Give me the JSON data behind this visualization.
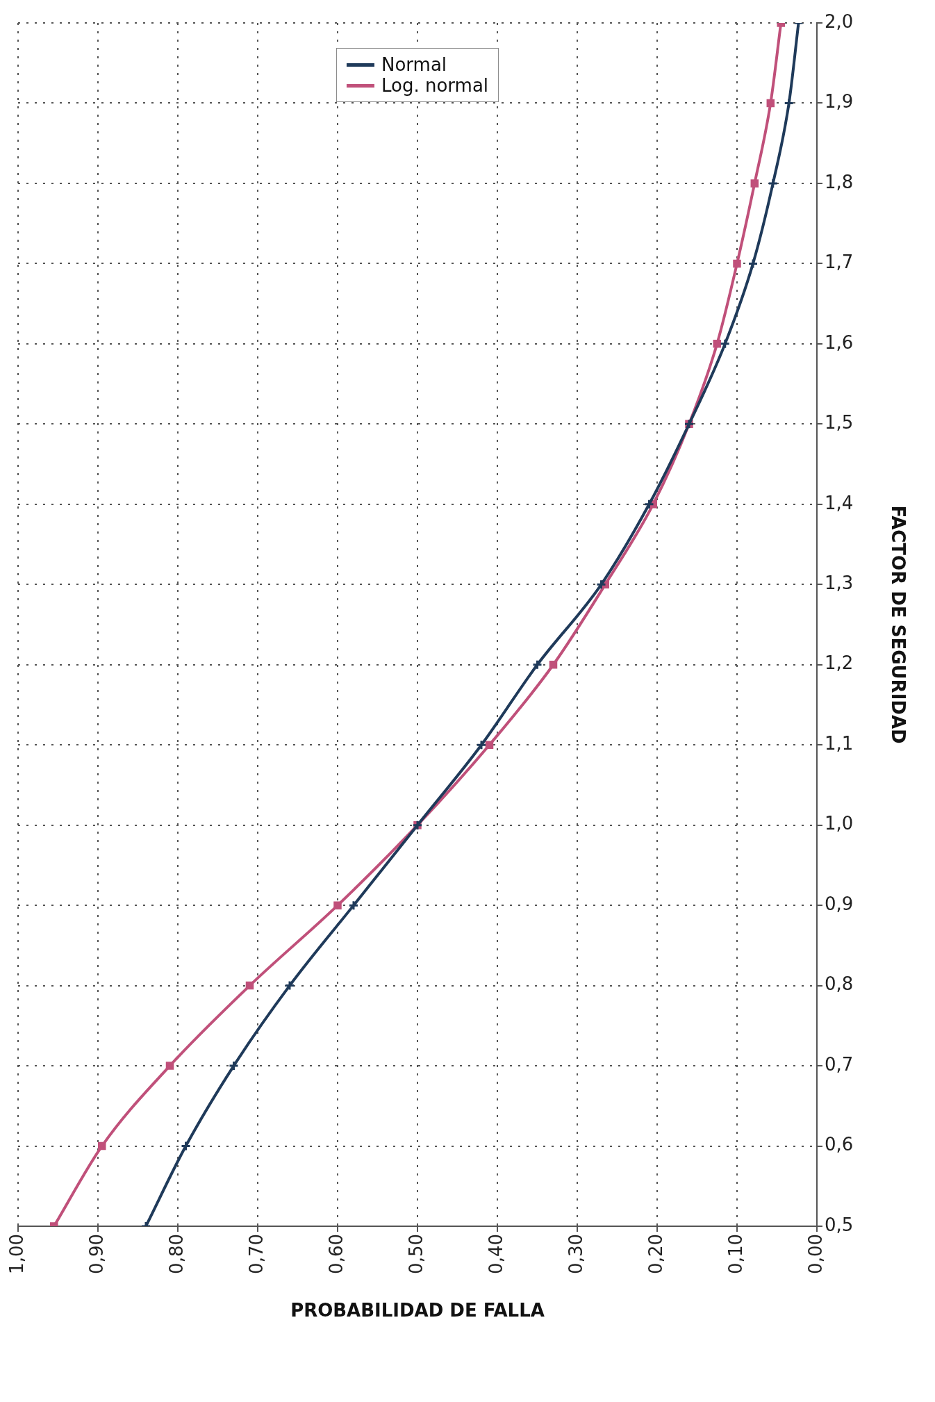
{
  "chart_data": {
    "type": "line",
    "xlabel": "PROBABILIDAD DE FALLA",
    "ylabel": "FACTOR DE SEGURIDAD",
    "series": [
      {
        "name": "Normal",
        "color": "#1f3a5a",
        "marker": "cross",
        "x": [
          0.84,
          0.79,
          0.73,
          0.66,
          0.58,
          0.5,
          0.42,
          0.35,
          0.27,
          0.21,
          0.16,
          0.115,
          0.08,
          0.055,
          0.035,
          0.023
        ],
        "values": [
          0.5,
          0.6,
          0.7,
          0.8,
          0.9,
          1.0,
          1.1,
          1.2,
          1.3,
          1.4,
          1.5,
          1.6,
          1.7,
          1.8,
          1.9,
          2.0
        ]
      },
      {
        "name": "Log. normal",
        "color": "#c0507a",
        "marker": "square",
        "x": [
          0.955,
          0.895,
          0.81,
          0.71,
          0.6,
          0.5,
          0.41,
          0.33,
          0.265,
          0.205,
          0.16,
          0.125,
          0.1,
          0.078,
          0.058,
          0.045
        ],
        "values": [
          0.5,
          0.6,
          0.7,
          0.8,
          0.9,
          1.0,
          1.1,
          1.2,
          1.3,
          1.4,
          1.5,
          1.6,
          1.7,
          1.8,
          1.9,
          2.0
        ]
      }
    ],
    "ylim": [
      0.5,
      2.0
    ],
    "yticks": [
      {
        "value": 0.5,
        "label": "0,5"
      },
      {
        "value": 0.6,
        "label": "0,6"
      },
      {
        "value": 0.7,
        "label": "0,7"
      },
      {
        "value": 0.8,
        "label": "0,8"
      },
      {
        "value": 0.9,
        "label": "0,9"
      },
      {
        "value": 1.0,
        "label": "1,0"
      },
      {
        "value": 1.1,
        "label": "1,1"
      },
      {
        "value": 1.2,
        "label": "1,2"
      },
      {
        "value": 1.3,
        "label": "1,3"
      },
      {
        "value": 1.4,
        "label": "1,4"
      },
      {
        "value": 1.5,
        "label": "1,5"
      },
      {
        "value": 1.6,
        "label": "1,6"
      },
      {
        "value": 1.7,
        "label": "1,7"
      },
      {
        "value": 1.8,
        "label": "1,8"
      },
      {
        "value": 1.9,
        "label": "1,9"
      },
      {
        "value": 2.0,
        "label": "2,0"
      }
    ],
    "xlim": [
      1,
      0
    ],
    "xticks": [
      {
        "value": 1,
        "label": "1,00"
      },
      {
        "value": 0.9,
        "label": "0,90"
      },
      {
        "value": 0.8,
        "label": "0,80"
      },
      {
        "value": 0.7,
        "label": "0,70"
      },
      {
        "value": 0.6,
        "label": "0,60"
      },
      {
        "value": 0.5,
        "label": "0,50"
      },
      {
        "value": 0.4,
        "label": "0,40"
      },
      {
        "value": 0.3,
        "label": "0,30"
      },
      {
        "value": 0.2,
        "label": "0,20"
      },
      {
        "value": 0.1,
        "label": "0,10"
      },
      {
        "value": 0,
        "label": "0,00"
      }
    ],
    "grid": true,
    "legend": "top",
    "line_style": "solid"
  }
}
